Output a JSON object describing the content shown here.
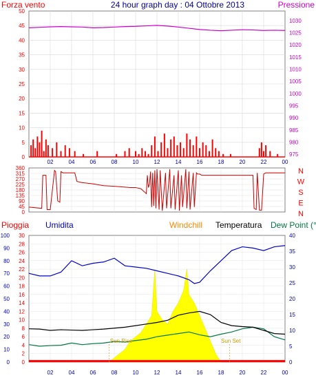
{
  "header": {
    "left": "Forza vento",
    "center": "24 hour graph day : 04 Ottobre 2013",
    "right": "Pressione"
  },
  "legend": {
    "pioggia": "Pioggia",
    "umidita": "Umidita",
    "windchill": "Windchill",
    "temperatura": "Temperatura",
    "dewpoint": "Dew Point (°C"
  },
  "annotations": {
    "sunrise": "Sun Rise",
    "sunset": "Sun Set"
  },
  "colors": {
    "wind": "#ff0000",
    "pressure": "#cc00cc",
    "direction": "#cc0000",
    "humidity": "#0000cc",
    "temperature": "#000000",
    "dewpoint": "#007744",
    "windchill": "#ff8800",
    "rain": "#ff0000",
    "solar": "#ffff00",
    "title": "#000099",
    "axis_left": "#ff0000",
    "axis_right_pressure": "#cc00cc",
    "axis_left_humidity": "#0000cc",
    "axis_right_temp": "#0000cc",
    "axis_direction": "#ff0000"
  },
  "chart_data": [
    {
      "type": "line",
      "title": "24 hour graph day : 04 Ottobre 2013",
      "x_ticks": [
        "02",
        "04",
        "06",
        "08",
        "10",
        "12",
        "14",
        "16",
        "18",
        "20",
        "22",
        "00"
      ],
      "xlim": [
        0,
        24
      ],
      "left_axis": {
        "label": "Forza vento",
        "ticks": [
          0,
          5,
          10,
          15,
          20,
          25,
          30,
          35,
          40,
          45,
          50
        ],
        "ylim": [
          0,
          50
        ]
      },
      "right_axis": {
        "label": "Pressione",
        "ticks": [
          975,
          980,
          985,
          990,
          995,
          1000,
          1005,
          1010,
          1015,
          1020,
          1025,
          1030
        ],
        "ylim": [
          973.9,
          1033.9
        ]
      },
      "series": [
        {
          "name": "Pressione",
          "x": [
            0,
            1,
            2,
            3,
            4,
            5,
            6,
            7,
            8,
            9,
            10,
            11,
            12,
            13,
            14,
            15,
            16,
            17,
            18,
            19,
            20,
            21,
            22,
            23,
            24
          ],
          "values": [
            1027.0,
            1027.2,
            1027.4,
            1027.5,
            1027.4,
            1027.3,
            1027.0,
            1027.1,
            1027.3,
            1027.5,
            1027.6,
            1027.8,
            1028.0,
            1027.7,
            1027.3,
            1026.8,
            1026.3,
            1026.0,
            1025.8,
            1026.0,
            1026.2,
            1026.1,
            1025.9,
            1026.0,
            1025.9
          ]
        },
        {
          "name": "Forza vento",
          "x": [
            0.2,
            0.4,
            0.6,
            0.8,
            1.0,
            1.2,
            1.4,
            1.6,
            1.8,
            2.2,
            2.6,
            3.0,
            3.4,
            3.8,
            4.3,
            5.1,
            6.4,
            8.2,
            9.0,
            9.4,
            10.0,
            10.3,
            10.6,
            10.9,
            11.2,
            11.5,
            11.8,
            12.1,
            12.4,
            12.7,
            13.0,
            13.3,
            13.6,
            13.9,
            14.2,
            14.5,
            14.8,
            15.1,
            15.4,
            15.7,
            16.0,
            16.3,
            16.6,
            16.9,
            17.2,
            17.5,
            17.8,
            18.2,
            18.9,
            21.6,
            21.8,
            22.0,
            22.2,
            22.6,
            23.3
          ],
          "values": [
            4,
            6,
            3,
            7,
            5,
            9,
            2,
            6,
            4,
            3,
            5,
            2,
            4,
            3,
            2,
            1,
            2,
            1,
            2,
            3,
            2,
            1,
            3,
            2,
            1,
            4,
            7,
            2,
            5,
            8,
            3,
            6,
            7,
            4,
            5,
            3,
            8,
            6,
            4,
            7,
            3,
            5,
            4,
            2,
            6,
            3,
            2,
            1,
            1,
            3,
            5,
            2,
            4,
            2,
            1
          ]
        }
      ]
    },
    {
      "type": "line",
      "title": "",
      "xlim": [
        0,
        24
      ],
      "left_axis": {
        "ticks": [
          0,
          45,
          90,
          135,
          180,
          225,
          270,
          315,
          360
        ],
        "ylim": [
          0,
          360
        ]
      },
      "right_axis": {
        "ticks": [
          "N",
          "W",
          "S",
          "E",
          "N"
        ]
      },
      "series": [
        {
          "name": "",
          "x": [
            0,
            1.2,
            1.3,
            1.6,
            1.7,
            2.0,
            2.4,
            2.5,
            2.7,
            2.9,
            3.0,
            3.2,
            4.3,
            4.5,
            5.0,
            6.0,
            7.0,
            8.0,
            9.5,
            10.0,
            10.5,
            11.0,
            11.1,
            11.2,
            11.3,
            11.4,
            11.5,
            11.6,
            11.7,
            11.8,
            11.9,
            12.0,
            12.2,
            12.3,
            12.5,
            12.8,
            12.9,
            13.2,
            13.3,
            13.6,
            13.7,
            14.0,
            14.1,
            14.3,
            14.4,
            14.7,
            14.8,
            15.0,
            15.1,
            15.4,
            15.5,
            15.7,
            15.8,
            16.0,
            16.2,
            21.0,
            21.1,
            21.3,
            21.4,
            21.6,
            21.8,
            22.0,
            22.2,
            23.0,
            24.0
          ],
          "values": [
            40,
            30,
            300,
            300,
            20,
            20,
            340,
            330,
            90,
            80,
            330,
            320,
            320,
            250,
            240,
            230,
            215,
            210,
            200,
            200,
            190,
            150,
            300,
            200,
            230,
            330,
            40,
            320,
            50,
            340,
            30,
            350,
            20,
            340,
            10,
            320,
            30,
            350,
            30,
            300,
            20,
            340,
            10,
            300,
            40,
            350,
            30,
            330,
            20,
            320,
            40,
            320,
            310,
            310,
            300,
            300,
            30,
            20,
            320,
            15,
            15,
            310,
            320,
            320,
            320
          ]
        }
      ]
    },
    {
      "type": "line",
      "title": "",
      "xlim": [
        0,
        24
      ],
      "humidity_axis": {
        "label": "Umidita",
        "ticks": [
          0,
          10,
          20,
          30,
          40,
          50,
          60,
          70,
          80,
          90,
          100
        ],
        "ylim": [
          0,
          100
        ]
      },
      "rain_axis": {
        "label": "Pioggia",
        "ticks": [
          0,
          2,
          4,
          6,
          8,
          10,
          12,
          14,
          16,
          18,
          20,
          22,
          24,
          26,
          28,
          30
        ],
        "ylim": [
          0,
          30
        ]
      },
      "temp_axis": {
        "label": "Temperatura",
        "ticks": [
          0,
          5,
          10,
          15,
          20,
          25,
          30,
          35,
          40
        ],
        "ylim": [
          0,
          40
        ]
      },
      "series": [
        {
          "name": "Umidita",
          "x": [
            0,
            1,
            2,
            3,
            4,
            5,
            6,
            7,
            8,
            9,
            10,
            11,
            12,
            13,
            14,
            15,
            15.5,
            16,
            17,
            18,
            19,
            20,
            21,
            22,
            23,
            24
          ],
          "values": [
            70,
            68,
            68,
            71,
            80,
            76,
            78,
            79,
            82,
            76,
            75,
            74,
            72,
            70,
            68,
            65,
            62,
            63,
            72,
            80,
            88,
            91,
            90,
            88,
            91,
            92
          ]
        },
        {
          "name": "Temperatura",
          "x": [
            0,
            1,
            2,
            3,
            4,
            5,
            6,
            7,
            8,
            9,
            10,
            11,
            12,
            13,
            14,
            15,
            16,
            17,
            18,
            19,
            20,
            21,
            22,
            23,
            24
          ],
          "values": [
            10.5,
            10.4,
            10.0,
            10.2,
            10.1,
            10.0,
            10.2,
            10.4,
            10.7,
            11.0,
            11.5,
            12.0,
            12.5,
            13.2,
            14.8,
            15.5,
            16.0,
            15.0,
            12.5,
            11.5,
            11.2,
            11.0,
            10.0,
            9.0,
            8.8
          ]
        },
        {
          "name": "Dew Point (°C",
          "x": [
            0,
            1,
            2,
            3,
            4,
            5,
            6,
            7,
            8,
            9,
            10,
            11,
            12,
            13,
            14,
            15,
            16,
            17,
            18,
            19,
            20,
            21,
            22,
            23,
            24
          ],
          "values": [
            5.5,
            5.0,
            5.2,
            5.3,
            6.0,
            5.5,
            5.8,
            6.0,
            6.5,
            6.3,
            6.8,
            7.2,
            8.0,
            8.5,
            9.0,
            9.5,
            8.6,
            8.0,
            8.8,
            9.5,
            10.5,
            11.0,
            10.5,
            8.0,
            7.0
          ]
        },
        {
          "name": "Windchill",
          "x": [
            0,
            1,
            2,
            3,
            4,
            5,
            6,
            7,
            8,
            9,
            10,
            11,
            12,
            13,
            14,
            15,
            16,
            17,
            18,
            19,
            20,
            21,
            22,
            23,
            24
          ],
          "values": [
            0.3,
            0.3,
            0.3,
            0.3,
            0.3,
            0.3,
            0.3,
            0.3,
            0.3,
            0.3,
            0.3,
            0.3,
            0.3,
            0.3,
            0.3,
            0.3,
            0.3,
            0.3,
            0.3,
            0.3,
            0.3,
            0.3,
            0.3,
            0.3,
            0.3
          ]
        },
        {
          "name": "",
          "x": [
            7.5,
            8.0,
            8.5,
            9.0,
            9.5,
            10.0,
            10.5,
            11.0,
            11.5,
            11.8,
            12.0,
            12.5,
            13.0,
            13.5,
            14.0,
            14.5,
            14.8,
            15.0,
            15.5,
            16.0,
            16.5,
            17.0,
            17.5,
            18.0
          ],
          "values": [
            0,
            1,
            2,
            3,
            5,
            6,
            7,
            9,
            11,
            22,
            12,
            10,
            9,
            12,
            14,
            17,
            22,
            16,
            14,
            11,
            8,
            5,
            2,
            0
          ]
        }
      ]
    }
  ]
}
